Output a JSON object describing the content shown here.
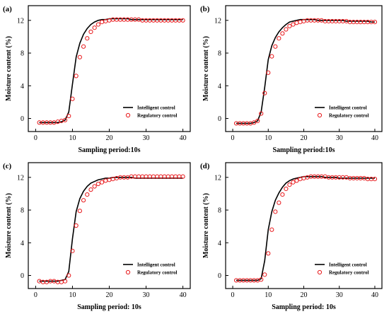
{
  "chart_data": [
    {
      "type": "line",
      "panel_label": "(a)",
      "xlabel": "Sampling period:10s",
      "ylabel": "Moisture content (%)",
      "xlim": [
        -2,
        42
      ],
      "ylim": [
        -1.6,
        13.8
      ],
      "xticks": [
        0,
        10,
        20,
        30,
        40
      ],
      "yticks": [
        0,
        4,
        8,
        12
      ],
      "legend_position": "lower-right",
      "series": [
        {
          "name": "Intelligent control",
          "style": "line",
          "color": "#000000",
          "x": [
            1,
            2,
            3,
            4,
            5,
            6,
            7,
            8,
            9,
            10,
            11,
            12,
            13,
            14,
            15,
            16,
            17,
            18,
            19,
            20,
            21,
            22,
            23,
            24,
            25,
            26,
            27,
            28,
            29,
            30,
            31,
            32,
            33,
            34,
            35,
            36,
            37,
            38,
            39,
            40
          ],
          "y": [
            -0.5,
            -0.5,
            -0.5,
            -0.5,
            -0.5,
            -0.5,
            -0.4,
            -0.2,
            0.8,
            4.2,
            7.5,
            9.2,
            10.3,
            11.0,
            11.5,
            11.8,
            12.0,
            12.1,
            12.1,
            12.2,
            12.2,
            12.2,
            12.2,
            12.2,
            12.2,
            12.1,
            12.1,
            12.1,
            12.1,
            12.1,
            12.1,
            12.1,
            12.1,
            12.1,
            12.1,
            12.1,
            12.1,
            12.1,
            12.1,
            12.1
          ]
        },
        {
          "name": "Regulatory control",
          "style": "circle",
          "color": "#e8191c",
          "x": [
            1,
            2,
            3,
            4,
            5,
            6,
            7,
            8,
            9,
            10,
            11,
            12,
            13,
            14,
            15,
            16,
            17,
            18,
            19,
            20,
            21,
            22,
            23,
            24,
            25,
            26,
            27,
            28,
            29,
            30,
            31,
            32,
            33,
            34,
            35,
            36,
            37,
            38,
            39,
            40
          ],
          "y": [
            -0.5,
            -0.5,
            -0.5,
            -0.5,
            -0.5,
            -0.4,
            -0.3,
            -0.2,
            0.3,
            2.4,
            5.2,
            7.5,
            8.8,
            9.8,
            10.6,
            11.1,
            11.5,
            11.8,
            11.9,
            12.0,
            12.1,
            12.1,
            12.1,
            12.1,
            12.1,
            12.1,
            12.1,
            12.1,
            12.0,
            12.0,
            12.0,
            12.0,
            12.0,
            12.0,
            12.0,
            12.0,
            12.0,
            12.0,
            12.0,
            12.0
          ]
        }
      ]
    },
    {
      "type": "line",
      "panel_label": "(b)",
      "xlabel": "Sampling period:10s",
      "ylabel": "Moisture content (%)",
      "xlim": [
        -2,
        42
      ],
      "ylim": [
        -1.6,
        13.8
      ],
      "xticks": [
        0,
        10,
        20,
        30,
        40
      ],
      "yticks": [
        0,
        4,
        8,
        12
      ],
      "legend_position": "lower-right",
      "series": [
        {
          "name": "Intelligent control",
          "style": "line",
          "color": "#000000",
          "x": [
            1,
            2,
            3,
            4,
            5,
            6,
            7,
            8,
            9,
            10,
            11,
            12,
            13,
            14,
            15,
            16,
            17,
            18,
            19,
            20,
            21,
            22,
            23,
            24,
            25,
            26,
            27,
            28,
            29,
            30,
            31,
            32,
            33,
            34,
            35,
            36,
            37,
            38,
            39,
            40
          ],
          "y": [
            -0.6,
            -0.6,
            -0.6,
            -0.6,
            -0.6,
            -0.5,
            -0.3,
            0.8,
            3.8,
            7.2,
            8.9,
            9.9,
            10.6,
            11.1,
            11.5,
            11.8,
            11.9,
            12.0,
            12.1,
            12.1,
            12.1,
            12.1,
            12.1,
            12.0,
            12.0,
            12.0,
            12.0,
            12.0,
            12.0,
            12.0,
            12.0,
            11.9,
            11.9,
            11.9,
            11.9,
            11.9,
            11.9,
            11.9,
            11.8,
            11.8
          ]
        },
        {
          "name": "Regulatory control",
          "style": "circle",
          "color": "#e8191c",
          "x": [
            1,
            2,
            3,
            4,
            5,
            6,
            7,
            8,
            9,
            10,
            11,
            12,
            13,
            14,
            15,
            16,
            17,
            18,
            19,
            20,
            21,
            22,
            23,
            24,
            25,
            26,
            27,
            28,
            29,
            30,
            31,
            32,
            33,
            34,
            35,
            36,
            37,
            38,
            39,
            40
          ],
          "y": [
            -0.6,
            -0.6,
            -0.6,
            -0.6,
            -0.6,
            -0.5,
            -0.3,
            0.6,
            3.1,
            5.6,
            7.6,
            8.8,
            9.8,
            10.4,
            10.9,
            11.3,
            11.5,
            11.7,
            11.8,
            11.9,
            12.0,
            12.0,
            12.0,
            12.0,
            12.0,
            11.9,
            11.9,
            11.9,
            11.9,
            11.9,
            11.9,
            11.9,
            11.8,
            11.8,
            11.8,
            11.8,
            11.8,
            11.8,
            11.8,
            11.8
          ]
        }
      ]
    },
    {
      "type": "line",
      "panel_label": "(c)",
      "xlabel": "Sampling period: 10s",
      "ylabel": "Moisture content (%)",
      "xlim": [
        -2,
        42
      ],
      "ylim": [
        -1.6,
        13.8
      ],
      "xticks": [
        0,
        10,
        20,
        30,
        40
      ],
      "yticks": [
        0,
        4,
        8,
        12
      ],
      "legend_position": "lower-right",
      "series": [
        {
          "name": "Intelligent control",
          "style": "line",
          "color": "#000000",
          "x": [
            1,
            2,
            3,
            4,
            5,
            6,
            7,
            8,
            9,
            10,
            11,
            12,
            13,
            14,
            15,
            16,
            17,
            18,
            19,
            20,
            21,
            22,
            23,
            24,
            25,
            26,
            27,
            28,
            29,
            30,
            31,
            32,
            33,
            34,
            35,
            36,
            37,
            38,
            39,
            40
          ],
          "y": [
            -0.7,
            -0.7,
            -0.7,
            -0.7,
            -0.7,
            -0.7,
            -0.6,
            -0.5,
            0.5,
            4.5,
            7.8,
            9.4,
            10.3,
            10.9,
            11.3,
            11.5,
            11.7,
            11.8,
            11.9,
            11.9,
            12.0,
            12.0,
            12.0,
            12.0,
            12.0,
            12.0,
            11.9,
            11.9,
            11.9,
            11.9,
            11.9,
            11.9,
            11.9,
            11.9,
            11.9,
            11.9,
            11.9,
            11.9,
            11.9,
            11.9
          ]
        },
        {
          "name": "Regulatory control",
          "style": "circle",
          "color": "#e8191c",
          "x": [
            1,
            2,
            3,
            4,
            5,
            6,
            7,
            8,
            9,
            10,
            11,
            12,
            13,
            14,
            15,
            16,
            17,
            18,
            19,
            20,
            21,
            22,
            23,
            24,
            25,
            26,
            27,
            28,
            29,
            30,
            31,
            32,
            33,
            34,
            35,
            36,
            37,
            38,
            39,
            40
          ],
          "y": [
            -0.7,
            -0.8,
            -0.8,
            -0.7,
            -0.7,
            -0.8,
            -0.8,
            -0.7,
            0.0,
            3.0,
            6.1,
            7.9,
            9.2,
            9.9,
            10.5,
            10.9,
            11.2,
            11.4,
            11.6,
            11.7,
            11.8,
            11.9,
            12.0,
            12.0,
            12.0,
            12.1,
            12.1,
            12.1,
            12.1,
            12.1,
            12.1,
            12.1,
            12.1,
            12.1,
            12.1,
            12.1,
            12.1,
            12.1,
            12.1,
            12.1
          ]
        }
      ]
    },
    {
      "type": "line",
      "panel_label": "(d)",
      "xlabel": "Sampling period: 10s",
      "ylabel": "Moisture content (%)",
      "xlim": [
        -2,
        42
      ],
      "ylim": [
        -1.6,
        13.8
      ],
      "xticks": [
        0,
        10,
        20,
        30,
        40
      ],
      "yticks": [
        0,
        4,
        8,
        12
      ],
      "legend_position": "lower-right",
      "series": [
        {
          "name": "Intelligent control",
          "style": "line",
          "color": "#000000",
          "x": [
            1,
            2,
            3,
            4,
            5,
            6,
            7,
            8,
            9,
            10,
            11,
            12,
            13,
            14,
            15,
            16,
            17,
            18,
            19,
            20,
            21,
            22,
            23,
            24,
            25,
            26,
            27,
            28,
            29,
            30,
            31,
            32,
            33,
            34,
            35,
            36,
            37,
            38,
            39,
            40
          ],
          "y": [
            -0.6,
            -0.6,
            -0.6,
            -0.6,
            -0.6,
            -0.6,
            -0.6,
            -0.4,
            1.8,
            5.6,
            7.8,
            9.2,
            10.1,
            10.8,
            11.3,
            11.6,
            11.8,
            11.9,
            12.0,
            12.1,
            12.1,
            12.1,
            12.1,
            12.1,
            12.1,
            12.0,
            12.0,
            12.0,
            12.0,
            11.9,
            11.9,
            11.9,
            11.9,
            11.9,
            11.9,
            11.9,
            11.9,
            11.9,
            11.9,
            11.9
          ]
        },
        {
          "name": "Regulatory control",
          "style": "circle",
          "color": "#e8191c",
          "x": [
            1,
            2,
            3,
            4,
            5,
            6,
            7,
            8,
            9,
            10,
            11,
            12,
            13,
            14,
            15,
            16,
            17,
            18,
            19,
            20,
            21,
            22,
            23,
            24,
            25,
            26,
            27,
            28,
            29,
            30,
            31,
            32,
            33,
            34,
            35,
            36,
            37,
            38,
            39,
            40
          ],
          "y": [
            -0.6,
            -0.6,
            -0.6,
            -0.6,
            -0.6,
            -0.6,
            -0.6,
            -0.5,
            0.1,
            2.7,
            5.6,
            7.8,
            8.9,
            9.9,
            10.6,
            11.1,
            11.4,
            11.6,
            11.8,
            11.9,
            12.0,
            12.1,
            12.1,
            12.1,
            12.1,
            12.1,
            12.0,
            12.0,
            12.0,
            12.0,
            12.0,
            12.0,
            11.9,
            11.9,
            11.9,
            11.9,
            11.9,
            11.8,
            11.8,
            11.8
          ]
        }
      ]
    }
  ]
}
